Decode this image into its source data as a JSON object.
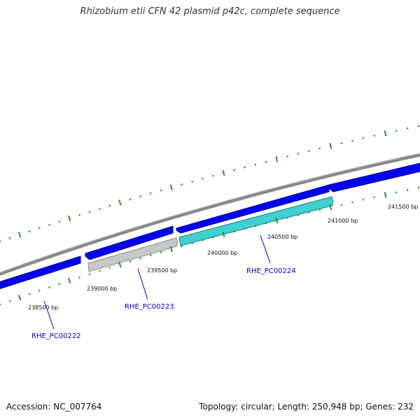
{
  "header": {
    "title": "Rhizobium etli CFN 42 plasmid p42c, complete sequence"
  },
  "footer": {
    "accession": "Accession: NC_007764",
    "summary": "Topology: circular; Length: 250,948 bp; Genes: 232"
  },
  "ruler": {
    "labels": [
      "238500 bp",
      "239000 bp",
      "239500 bp",
      "240000 bp",
      "240500 bp",
      "241000 bp",
      "241500 bp"
    ]
  },
  "genes": [
    {
      "label": "RHE_PC00222",
      "color": "#0000cc"
    },
    {
      "label": "RHE_PC00223",
      "color": "#0000cc"
    },
    {
      "label": "RHE_PC00224",
      "color": "#0000cc"
    }
  ],
  "colors": {
    "forward_feature": "#0000ee",
    "reverse_feature_grey": "#bbbbbb",
    "reverse_feature_teal": "#33cccc",
    "backbone": "#888888",
    "ticks": "#2e8b2e"
  }
}
